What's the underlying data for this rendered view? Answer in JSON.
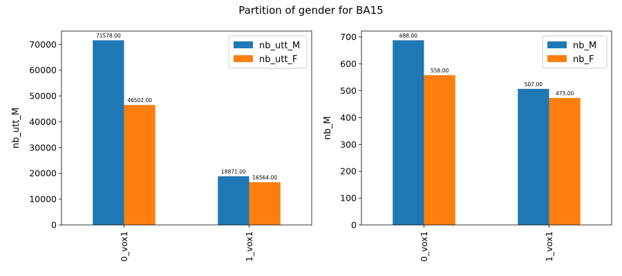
{
  "figure_title": "Partition of gender for BA15",
  "chart_data": [
    {
      "type": "bar",
      "title": "",
      "xlabel": "",
      "ylabel": "nb_utt_M",
      "categories": [
        "0_vox1",
        "1_vox1"
      ],
      "series": [
        {
          "name": "nb_utt_M",
          "values": [
            71578,
            18871
          ],
          "labels": [
            "71578.00",
            "18871.00"
          ],
          "color": "#1f77b4"
        },
        {
          "name": "nb_utt_F",
          "values": [
            46502,
            16564
          ],
          "labels": [
            "46502.00",
            "16564.00"
          ],
          "color": "#ff7f0e"
        }
      ],
      "ylim": [
        0,
        75157
      ],
      "yticks": [
        0,
        10000,
        20000,
        30000,
        40000,
        50000,
        60000,
        70000
      ],
      "legend": "top-right",
      "grid": false
    },
    {
      "type": "bar",
      "title": "",
      "xlabel": "",
      "ylabel": "nb_M",
      "categories": [
        "0_vox1",
        "1_vox1"
      ],
      "series": [
        {
          "name": "nb_M",
          "values": [
            688,
            507
          ],
          "labels": [
            "688.00",
            "507.00"
          ],
          "color": "#1f77b4"
        },
        {
          "name": "nb_F",
          "values": [
            558,
            473
          ],
          "labels": [
            "558.00",
            "473.00"
          ],
          "color": "#ff7f0e"
        }
      ],
      "ylim": [
        0,
        722.4
      ],
      "yticks": [
        0,
        100,
        200,
        300,
        400,
        500,
        600,
        700
      ],
      "legend": "top-right",
      "grid": false
    }
  ]
}
